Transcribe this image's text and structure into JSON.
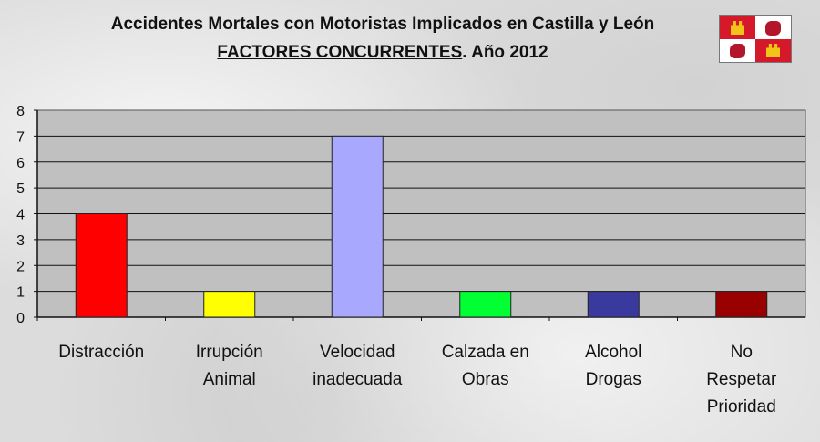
{
  "title_line1": "Accidentes Mortales con Motoristas Implicados en Castilla y León",
  "title_line2_underlined": "FACTORES CONCURRENTES",
  "title_line2_rest": ". Año 2012",
  "chart_data": {
    "type": "bar",
    "title": "Accidentes Mortales con Motoristas Implicados en Castilla y León FACTORES CONCURRENTES. Año 2012",
    "categories": [
      "Distracción",
      "Irrupción\nAnimal",
      "Velocidad\ninadecuada",
      "Calzada en\nObras",
      "Alcohol\nDrogas",
      "No\nRespetar\nPrioridad"
    ],
    "values": [
      4,
      1,
      7,
      1,
      1,
      1
    ],
    "bar_colors": [
      "#ff0000",
      "#ffff00",
      "#a8a8ff",
      "#00ff33",
      "#3a3a9e",
      "#990000"
    ],
    "ylim": [
      0,
      8
    ],
    "yticks": [
      "0",
      "1",
      "2",
      "3",
      "4",
      "5",
      "6",
      "7",
      "8"
    ],
    "plot_background": "#c0c0c0",
    "grid": true,
    "legend": "none"
  }
}
